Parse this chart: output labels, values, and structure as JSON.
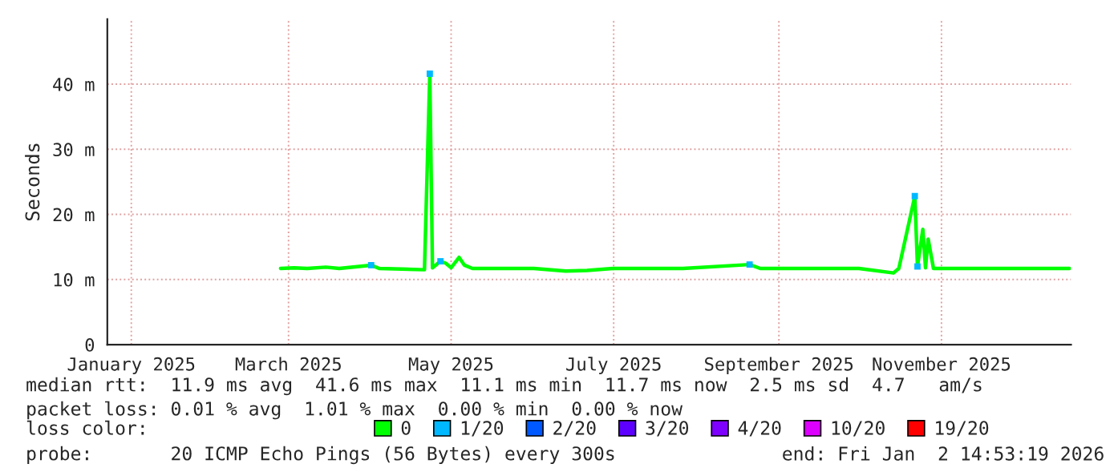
{
  "chart_data": {
    "type": "line",
    "ylabel": "Seconds",
    "xlim": [
      "2025-01-06",
      "2026-01-02T14:53"
    ],
    "xticks": [
      {
        "value": "2025-01-15",
        "label": "January 2025"
      },
      {
        "value": "2025-03-15",
        "label": "March 2025"
      },
      {
        "value": "2025-05-15",
        "label": "May 2025"
      },
      {
        "value": "2025-07-15",
        "label": "July 2025"
      },
      {
        "value": "2025-09-15",
        "label": "September 2025"
      },
      {
        "value": "2025-11-15",
        "label": "November 2025"
      }
    ],
    "ylim": [
      0,
      50
    ],
    "yticks": [
      0,
      {
        "value": 10,
        "label": "10 m"
      },
      {
        "value": 20,
        "label": "20 m"
      },
      {
        "value": 30,
        "label": "30 m"
      },
      {
        "value": 40,
        "label": "40 m"
      }
    ],
    "grid": true,
    "legend": "bottom",
    "legend_title": "loss color:",
    "series": [
      {
        "name": "0",
        "color": "#00ff00",
        "x": [
          "2025-03-12",
          "2025-03-17",
          "2025-03-22",
          "2025-03-29",
          "2025-04-03",
          "2025-04-15",
          "2025-04-18",
          "2025-05-05",
          "2025-05-07",
          "2025-05-08",
          "2025-05-11",
          "2025-05-13",
          "2025-05-15",
          "2025-05-18",
          "2025-05-20",
          "2025-05-23",
          "2025-06-15",
          "2025-06-27",
          "2025-07-05",
          "2025-07-15",
          "2025-08-10",
          "2025-09-04",
          "2025-09-08",
          "2025-10-15",
          "2025-10-28",
          "2025-10-30",
          "2025-11-05",
          "2025-11-06",
          "2025-11-08",
          "2025-11-09",
          "2025-11-10",
          "2025-11-12",
          "2025-12-15",
          "2026-01-02"
        ],
        "values": [
          11.7,
          11.8,
          11.7,
          11.9,
          11.7,
          12.2,
          11.7,
          11.5,
          41.6,
          11.8,
          12.8,
          12.5,
          11.8,
          13.4,
          12.2,
          11.7,
          11.7,
          11.3,
          11.4,
          11.7,
          11.7,
          12.3,
          11.7,
          11.7,
          11.0,
          11.7,
          22.8,
          12.0,
          17.7,
          11.8,
          16.2,
          11.7,
          11.7,
          11.7
        ]
      },
      {
        "name": "1/20",
        "color": "#00b8ff",
        "type": "scatter",
        "x": [
          "2025-04-15",
          "2025-05-07",
          "2025-05-11",
          "2025-09-04",
          "2025-11-05",
          "2025-11-06"
        ],
        "values": [
          12.2,
          41.6,
          12.8,
          12.3,
          22.8,
          12.0
        ]
      },
      {
        "name": "2/20",
        "color": "#0059ff",
        "type": "scatter"
      },
      {
        "name": "3/20",
        "color": "#5e00ff",
        "type": "scatter"
      },
      {
        "name": "4/20",
        "color": "#7e00ff",
        "type": "scatter"
      },
      {
        "name": "10/20",
        "color": "#dd00ff",
        "type": "scatter"
      },
      {
        "name": "19/20",
        "color": "#ff0000",
        "type": "scatter"
      }
    ],
    "annotations": [
      "median rtt:  11.9 ms avg  41.6 ms max  11.1 ms min  11.7 ms now  2.5 ms sd  4.7   am/s",
      "packet loss: 0.01 % avg  1.01 % max  0.00 % min  0.00 % now",
      "probe:       20 ICMP Echo Pings (56 Bytes) every 300s",
      "end: Fri Jan  2 14:53:19 2026"
    ]
  }
}
